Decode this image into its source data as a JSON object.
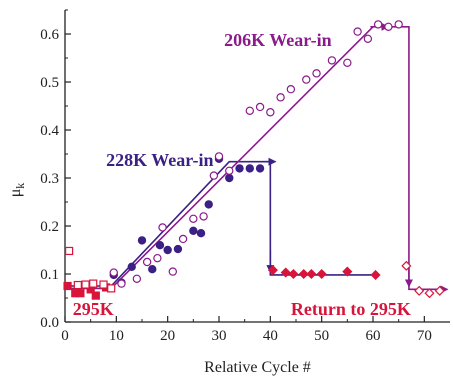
{
  "chart_data": {
    "type": "scatter",
    "xlabel": "Relative Cycle #",
    "ylabel": "μ",
    "ylabel_sub": "k",
    "xlim": [
      0,
      75
    ],
    "ylim": [
      0,
      0.65
    ],
    "xticks": [
      0,
      10,
      20,
      30,
      40,
      50,
      60,
      70
    ],
    "yticks": [
      0.0,
      0.1,
      0.2,
      0.3,
      0.4,
      0.5,
      0.6
    ],
    "xtick_labels": [
      "0",
      "10",
      "20",
      "30",
      "40",
      "50",
      "60",
      "70"
    ],
    "ytick_labels": [
      "0.0",
      "0.1",
      "0.2",
      "0.3",
      "0.4",
      "0.5",
      "0.6"
    ],
    "grid": false,
    "annotations": [
      {
        "text": "206K Wear-in",
        "color": "#8b1a8b",
        "x": 31,
        "y": 0.575
      },
      {
        "text": "228K Wear-in",
        "color": "#3b2085",
        "x": 8,
        "y": 0.325
      },
      {
        "text": "295K",
        "color": "#d8143a",
        "x": 1.5,
        "y": 0.015
      },
      {
        "text": "Return to 295K",
        "color": "#d8143a",
        "x": 44,
        "y": 0.015
      }
    ],
    "series": [
      {
        "marker": "square-filled",
        "color": "#d8143a",
        "points": [
          [
            0.5,
            0.075
          ],
          [
            2,
            0.06
          ],
          [
            3,
            0.06
          ],
          [
            5,
            0.068
          ],
          [
            6,
            0.055
          ],
          [
            8,
            0.072
          ]
        ]
      },
      {
        "marker": "square-open",
        "color": "#d8143a",
        "points": [
          [
            0.8,
            0.148
          ],
          [
            2.5,
            0.077
          ],
          [
            4,
            0.078
          ],
          [
            5.5,
            0.08
          ],
          [
            7.5,
            0.078
          ],
          [
            9,
            0.07
          ]
        ]
      },
      {
        "marker": "circle-filled",
        "color": "#3b2085",
        "points": [
          [
            9.5,
            0.098
          ],
          [
            11,
            0.082
          ],
          [
            13,
            0.115
          ],
          [
            15,
            0.17
          ],
          [
            17,
            0.11
          ],
          [
            18.5,
            0.16
          ],
          [
            20,
            0.15
          ],
          [
            22,
            0.152
          ],
          [
            25,
            0.19
          ],
          [
            26.5,
            0.185
          ],
          [
            28,
            0.245
          ],
          [
            30,
            0.34
          ],
          [
            32,
            0.3
          ],
          [
            34,
            0.32
          ],
          [
            36,
            0.32
          ],
          [
            38,
            0.32
          ]
        ]
      },
      {
        "marker": "circle-open",
        "color": "#8b1a8b",
        "points": [
          [
            9.5,
            0.103
          ],
          [
            11,
            0.08
          ],
          [
            14,
            0.09
          ],
          [
            16,
            0.125
          ],
          [
            18,
            0.133
          ],
          [
            19,
            0.197
          ],
          [
            21,
            0.105
          ],
          [
            23,
            0.173
          ],
          [
            25,
            0.215
          ],
          [
            27,
            0.22
          ],
          [
            29,
            0.305
          ],
          [
            30,
            0.345
          ],
          [
            32,
            0.315
          ],
          [
            36,
            0.44
          ],
          [
            38,
            0.448
          ],
          [
            40,
            0.437
          ],
          [
            42,
            0.468
          ],
          [
            44,
            0.485
          ],
          [
            47,
            0.505
          ],
          [
            49,
            0.518
          ],
          [
            52,
            0.545
          ],
          [
            55,
            0.54
          ],
          [
            57,
            0.605
          ],
          [
            59,
            0.59
          ],
          [
            61,
            0.62
          ],
          [
            63,
            0.615
          ],
          [
            65,
            0.62
          ]
        ]
      },
      {
        "marker": "diamond-filled",
        "color": "#d8143a",
        "points": [
          [
            40.5,
            0.108
          ],
          [
            43,
            0.103
          ],
          [
            44.5,
            0.1
          ],
          [
            46.5,
            0.1
          ],
          [
            48,
            0.1
          ],
          [
            50,
            0.1
          ],
          [
            55,
            0.105
          ],
          [
            60.5,
            0.098
          ]
        ]
      },
      {
        "marker": "diamond-open",
        "color": "#d8143a",
        "points": [
          [
            66.5,
            0.117
          ],
          [
            69,
            0.065
          ],
          [
            71,
            0.06
          ],
          [
            73,
            0.065
          ]
        ]
      }
    ],
    "fit_lines": [
      {
        "color": "#3b2085",
        "points": [
          [
            0.5,
            0.075
          ],
          [
            9,
            0.075
          ],
          [
            32,
            0.334
          ],
          [
            40,
            0.334
          ],
          [
            40,
            0.098
          ],
          [
            60,
            0.098
          ]
        ]
      },
      {
        "color": "#8b1a8b",
        "points": [
          [
            0.5,
            0.07
          ],
          [
            9,
            0.07
          ],
          [
            60,
            0.615
          ],
          [
            67,
            0.615
          ],
          [
            67,
            0.068
          ],
          [
            74,
            0.068
          ]
        ]
      }
    ],
    "annotation_arrows": [
      {
        "color": "#8b1a8b",
        "from": [
          59.5,
          0.615
        ],
        "to": [
          63,
          0.615
        ]
      },
      {
        "color": "#3b2085",
        "from": [
          38.5,
          0.334
        ],
        "to": [
          41,
          0.334
        ]
      },
      {
        "color": "#3b2085",
        "from": [
          40,
          0.15
        ],
        "to": [
          40,
          0.104
        ]
      },
      {
        "color": "#8b1a8b",
        "from": [
          67,
          0.12
        ],
        "to": [
          67,
          0.074
        ]
      },
      {
        "color": "#8b1a8b",
        "from": [
          72,
          0.068
        ],
        "to": [
          74.5,
          0.068
        ]
      }
    ]
  }
}
